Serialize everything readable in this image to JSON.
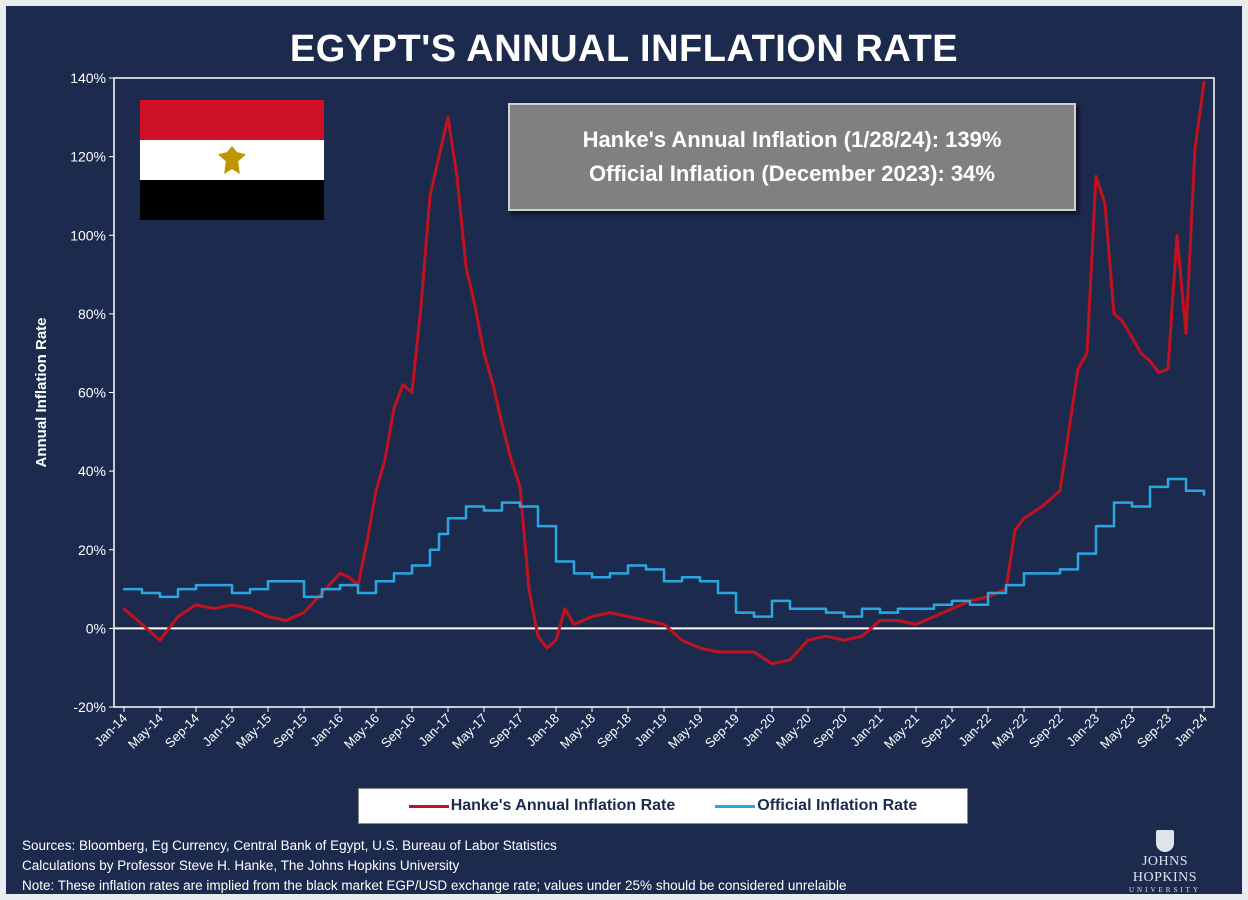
{
  "title": "EGYPT'S ANNUAL INFLATION RATE",
  "callout": {
    "line1": "Hanke's Annual Inflation (1/28/24): 139%",
    "line2": "Official Inflation (December 2023): 34%"
  },
  "footnotes": {
    "sources": "Sources: Bloomberg, Eg Currency, Central Bank of Egypt, U.S. Bureau of Labor Statistics",
    "calculations": "Calculations by Professor Steve H. Hanke, The Johns Hopkins University",
    "note": "Note: These inflation rates are implied from the black market EGP/USD exchange rate; values under 25% should be considered unrelaible"
  },
  "logo": {
    "name": "JOHNS HOPKINS",
    "sub": "UNIVERSITY"
  },
  "colors": {
    "background": "#1c2a4e",
    "hanke": "#c1121f",
    "official": "#2aa7df",
    "flag_red": "#ce1126",
    "flag_white": "#ffffff",
    "flag_black": "#000000",
    "flag_eagle": "#c09300"
  },
  "chart_data": {
    "type": "line",
    "title": "EGYPT'S ANNUAL INFLATION RATE",
    "xlabel": "",
    "ylabel": "Annual Inflation Rate",
    "ylim": [
      -20,
      140
    ],
    "y_ticks": [
      "-20%",
      "0%",
      "20%",
      "40%",
      "60%",
      "80%",
      "100%",
      "120%",
      "140%"
    ],
    "x_tick_labels": [
      "Jan-14",
      "May-14",
      "Sep-14",
      "Jan-15",
      "May-15",
      "Sep-15",
      "Jan-16",
      "May-16",
      "Sep-16",
      "Jan-17",
      "May-17",
      "Sep-17",
      "Jan-18",
      "May-18",
      "Sep-18",
      "Jan-19",
      "May-19",
      "Sep-19",
      "Jan-20",
      "May-20",
      "Sep-20",
      "Jan-21",
      "May-21",
      "Sep-21",
      "Jan-22",
      "May-22",
      "Sep-22",
      "Jan-23",
      "May-23",
      "Sep-23",
      "Jan-24"
    ],
    "legend_position": "bottom",
    "series": [
      {
        "name": "Hanke's Annual Inflation Rate",
        "color": "#c1121f",
        "x": [
          "2014-01",
          "2014-03",
          "2014-05",
          "2014-07",
          "2014-09",
          "2014-11",
          "2015-01",
          "2015-03",
          "2015-05",
          "2015-07",
          "2015-09",
          "2015-11",
          "2016-01",
          "2016-02",
          "2016-03",
          "2016-04",
          "2016-05",
          "2016-06",
          "2016-07",
          "2016-08",
          "2016-09",
          "2016-10",
          "2016-11",
          "2016-12",
          "2017-01",
          "2017-02",
          "2017-03",
          "2017-04",
          "2017-05",
          "2017-06",
          "2017-07",
          "2017-08",
          "2017-09",
          "2017-10",
          "2017-11",
          "2017-12",
          "2018-01",
          "2018-02",
          "2018-03",
          "2018-05",
          "2018-07",
          "2018-09",
          "2018-11",
          "2019-01",
          "2019-03",
          "2019-05",
          "2019-07",
          "2019-09",
          "2019-11",
          "2020-01",
          "2020-03",
          "2020-05",
          "2020-07",
          "2020-09",
          "2020-11",
          "2021-01",
          "2021-03",
          "2021-05",
          "2021-07",
          "2021-09",
          "2021-11",
          "2022-01",
          "2022-03",
          "2022-04",
          "2022-05",
          "2022-07",
          "2022-09",
          "2022-11",
          "2022-12",
          "2023-01",
          "2023-02",
          "2023-03",
          "2023-04",
          "2023-05",
          "2023-06",
          "2023-07",
          "2023-08",
          "2023-09",
          "2023-10",
          "2023-11",
          "2023-12",
          "2024-01"
        ],
        "values": [
          5,
          1,
          -3,
          3,
          6,
          5,
          6,
          5,
          3,
          2,
          4,
          9,
          14,
          13,
          11,
          22,
          35,
          43,
          56,
          62,
          60,
          82,
          110,
          120,
          130,
          115,
          92,
          82,
          70,
          62,
          52,
          43,
          36,
          10,
          -2,
          -5,
          -3,
          5,
          1,
          3,
          4,
          3,
          2,
          1,
          -3,
          -5,
          -6,
          -6,
          -6,
          -9,
          -8,
          -3,
          -2,
          -3,
          -2,
          2,
          2,
          1,
          3,
          5,
          7,
          8,
          10,
          25,
          28,
          31,
          35,
          66,
          70,
          115,
          108,
          80,
          78,
          74,
          70,
          68,
          65,
          66,
          100,
          75,
          122,
          139
        ]
      },
      {
        "name": "Official Inflation Rate",
        "color": "#2aa7df",
        "x": [
          "2014-01",
          "2014-03",
          "2014-05",
          "2014-07",
          "2014-09",
          "2014-11",
          "2015-01",
          "2015-03",
          "2015-05",
          "2015-07",
          "2015-09",
          "2015-11",
          "2016-01",
          "2016-03",
          "2016-05",
          "2016-07",
          "2016-09",
          "2016-11",
          "2016-12",
          "2017-01",
          "2017-03",
          "2017-05",
          "2017-07",
          "2017-09",
          "2017-11",
          "2018-01",
          "2018-03",
          "2018-05",
          "2018-07",
          "2018-09",
          "2018-11",
          "2019-01",
          "2019-03",
          "2019-05",
          "2019-07",
          "2019-09",
          "2019-11",
          "2020-01",
          "2020-03",
          "2020-05",
          "2020-07",
          "2020-09",
          "2020-11",
          "2021-01",
          "2021-03",
          "2021-05",
          "2021-07",
          "2021-09",
          "2021-11",
          "2022-01",
          "2022-03",
          "2022-05",
          "2022-07",
          "2022-09",
          "2022-11",
          "2023-01",
          "2023-03",
          "2023-05",
          "2023-07",
          "2023-09",
          "2023-11",
          "2024-01"
        ],
        "values": [
          10,
          9,
          8,
          10,
          11,
          11,
          9,
          10,
          12,
          12,
          8,
          10,
          11,
          9,
          12,
          14,
          16,
          20,
          24,
          28,
          31,
          30,
          32,
          31,
          26,
          17,
          14,
          13,
          14,
          16,
          15,
          12,
          13,
          12,
          9,
          4,
          3,
          7,
          5,
          5,
          4,
          3,
          5,
          4,
          5,
          5,
          6,
          7,
          6,
          9,
          11,
          14,
          14,
          15,
          19,
          26,
          32,
          31,
          36,
          38,
          35,
          34
        ]
      }
    ]
  }
}
